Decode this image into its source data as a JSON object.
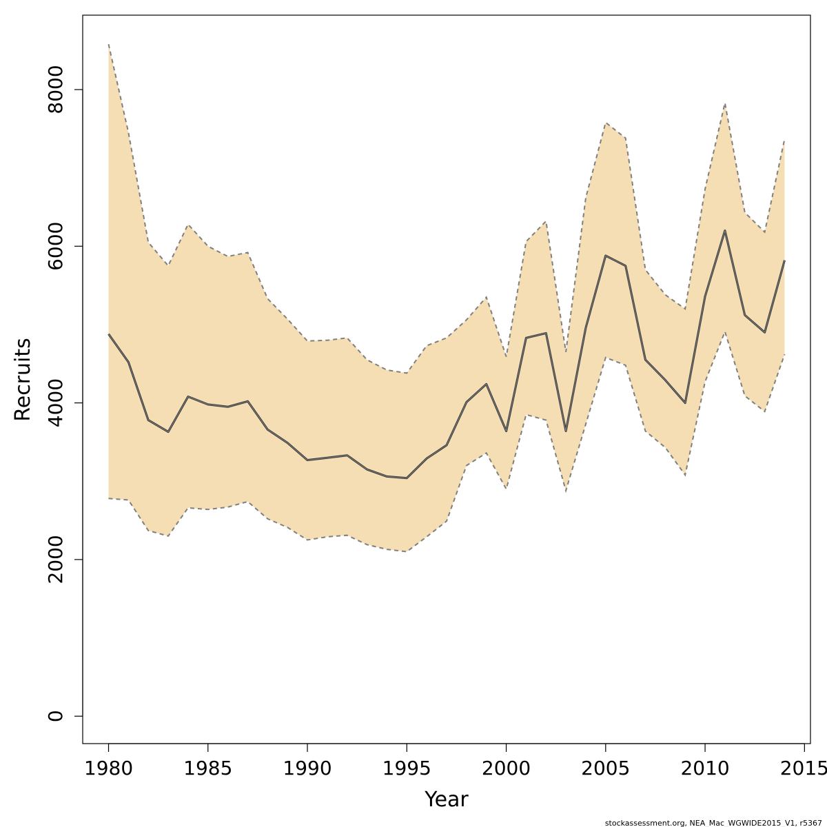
{
  "chart_data": {
    "type": "area",
    "xlabel": "Year",
    "ylabel": "Recruits",
    "xlim": [
      1978.7,
      2015.3
    ],
    "ylim": [
      -350,
      8950
    ],
    "x_ticks": [
      1980,
      1985,
      1990,
      1995,
      2000,
      2005,
      2010,
      2015
    ],
    "y_ticks": [
      0,
      2000,
      4000,
      6000,
      8000
    ],
    "grid": false,
    "legend": "none",
    "x": [
      1980,
      1981,
      1982,
      1983,
      1984,
      1985,
      1986,
      1987,
      1988,
      1989,
      1990,
      1991,
      1992,
      1993,
      1994,
      1995,
      1996,
      1997,
      1998,
      1999,
      2000,
      2001,
      2002,
      2003,
      2004,
      2005,
      2006,
      2007,
      2008,
      2009,
      2010,
      2011,
      2012,
      2013,
      2014
    ],
    "series": [
      {
        "role": "estimate",
        "values": [
          4880,
          4520,
          3780,
          3630,
          4080,
          3980,
          3950,
          4020,
          3660,
          3490,
          3270,
          3300,
          3330,
          3150,
          3060,
          3040,
          3290,
          3460,
          4010,
          4240,
          3640,
          4830,
          4890,
          3640,
          4960,
          5880,
          5750,
          4550,
          4290,
          4000,
          5360,
          6200,
          5120,
          4900,
          5820
        ]
      },
      {
        "role": "upper",
        "values": [
          8580,
          7450,
          6050,
          5750,
          6280,
          6000,
          5870,
          5920,
          5330,
          5070,
          4790,
          4800,
          4830,
          4550,
          4420,
          4380,
          4730,
          4830,
          5060,
          5350,
          4590,
          6060,
          6320,
          4650,
          6620,
          7580,
          7380,
          5700,
          5380,
          5200,
          6730,
          7830,
          6430,
          6180,
          7370
        ]
      },
      {
        "role": "lower",
        "values": [
          2780,
          2760,
          2370,
          2300,
          2660,
          2640,
          2670,
          2740,
          2520,
          2410,
          2250,
          2290,
          2310,
          2190,
          2130,
          2100,
          2290,
          2490,
          3200,
          3360,
          2900,
          3850,
          3780,
          2880,
          3730,
          4580,
          4480,
          3640,
          3430,
          3080,
          4270,
          4910,
          4090,
          3890,
          4620
        ]
      }
    ],
    "colors": {
      "band_fill": "#f5deb3",
      "band_edge": "#7f7f7f",
      "line": "#4d4d4d",
      "axis": "#000000"
    }
  },
  "footnote": "stockassessment.org, NEA_Mac_WGWIDE2015_V1, r5367"
}
